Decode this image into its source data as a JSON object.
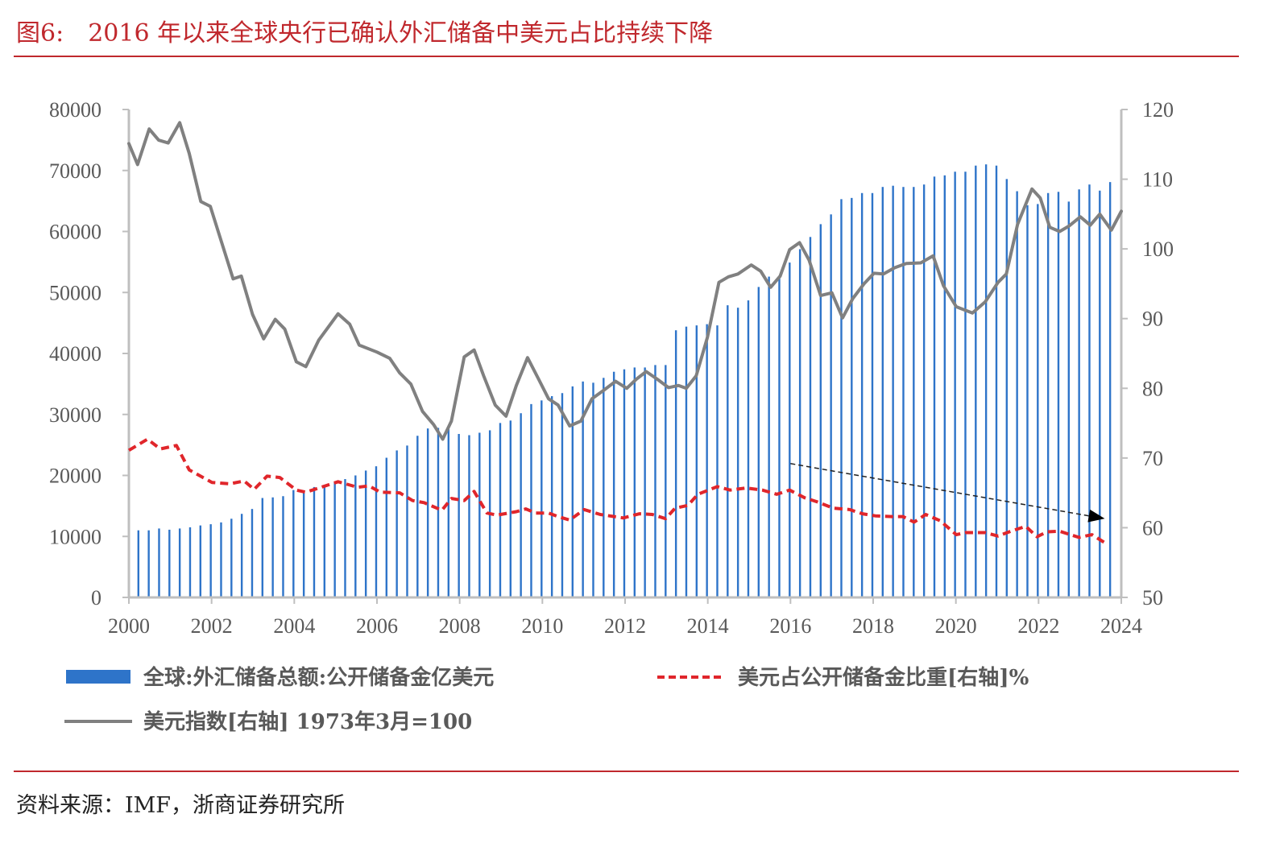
{
  "title": "图6:　2016 年以来全球央行已确认外汇储备中美元占比持续下降",
  "source": "资料来源：IMF，浙商证券研究所",
  "colors": {
    "title": "#c0282d",
    "bars": "#2e74c9",
    "dxy": "#808080",
    "usd_share": "#e0262b",
    "arrow": "#222222"
  },
  "chart_data": {
    "type": "bar+line",
    "title": "2016 年以来全球央行已确认外汇储备中美元占比持续下降",
    "x_ticks": [
      "2000",
      "2002",
      "2004",
      "2006",
      "2008",
      "2010",
      "2012",
      "2014",
      "2016",
      "2018",
      "2020",
      "2022",
      "2024"
    ],
    "xlim": [
      2000,
      2024
    ],
    "y_left": {
      "ticks": [
        "0",
        "10000",
        "20000",
        "30000",
        "40000",
        "50000",
        "60000",
        "70000",
        "80000"
      ],
      "ylim": [
        0,
        80000
      ]
    },
    "y_right": {
      "ticks": [
        "50",
        "60",
        "70",
        "80",
        "90",
        "100",
        "110",
        "120"
      ],
      "ylim": [
        50,
        120
      ]
    },
    "grid": false,
    "legend_position": "bottom",
    "series": [
      {
        "name": "全球:外汇储备总额:公开储备金 亿美元",
        "legend": "全球:外汇储备总额:公开储备金亿美元",
        "type": "bar",
        "axis": "left",
        "frequency": "quarterly",
        "start": "2000Q1",
        "values": [
          11000,
          11000,
          11300,
          11100,
          11300,
          11500,
          11800,
          12000,
          12300,
          12900,
          13700,
          14500,
          16300,
          16400,
          16600,
          17600,
          17300,
          18100,
          18300,
          19000,
          19400,
          20000,
          20800,
          21500,
          22900,
          24100,
          24900,
          26500,
          27700,
          27800,
          28000,
          26800,
          26600,
          27000,
          27400,
          28600,
          29000,
          30200,
          31700,
          32300,
          33000,
          33500,
          34600,
          35400,
          35200,
          36000,
          37000,
          37400,
          37700,
          37700,
          38100,
          38100,
          43800,
          44400,
          44600,
          44800,
          44600,
          47900,
          47500,
          48700,
          50900,
          52600,
          52400,
          54900,
          57100,
          59100,
          61200,
          62800,
          65300,
          65500,
          66300,
          66300,
          67300,
          67500,
          67300,
          67300,
          67700,
          69000,
          69200,
          69800,
          69800,
          70800,
          71000,
          70800,
          68600,
          66600,
          64300,
          64500,
          66300,
          66500,
          64900,
          66900,
          67700,
          66700,
          68100
        ]
      },
      {
        "name": "美元占公开储备金比重[右轴]%",
        "legend": "美元占公开储备金比重[右轴]%",
        "type": "line",
        "style": "dashed",
        "axis": "right",
        "points": [
          [
            2000.0,
            71.1
          ],
          [
            2000.45,
            72.7
          ],
          [
            2000.76,
            71.3
          ],
          [
            2001.15,
            71.8
          ],
          [
            2001.46,
            68.3
          ],
          [
            2002.01,
            66.5
          ],
          [
            2002.44,
            66.3
          ],
          [
            2002.79,
            66.7
          ],
          [
            2003.03,
            65.5
          ],
          [
            2003.34,
            67.4
          ],
          [
            2003.65,
            67.2
          ],
          [
            2004.05,
            65.4
          ],
          [
            2004.28,
            65.1
          ],
          [
            2004.75,
            66.0
          ],
          [
            2005.06,
            66.6
          ],
          [
            2005.53,
            65.8
          ],
          [
            2005.81,
            66.0
          ],
          [
            2006.08,
            65.1
          ],
          [
            2006.55,
            65.0
          ],
          [
            2006.86,
            63.9
          ],
          [
            2007.14,
            63.6
          ],
          [
            2007.57,
            62.5
          ],
          [
            2007.8,
            64.2
          ],
          [
            2008.11,
            63.9
          ],
          [
            2008.35,
            65.2
          ],
          [
            2008.66,
            62.1
          ],
          [
            2008.9,
            61.8
          ],
          [
            2009.37,
            62.3
          ],
          [
            2009.6,
            62.7
          ],
          [
            2009.84,
            62.1
          ],
          [
            2010.15,
            62.1
          ],
          [
            2010.38,
            61.6
          ],
          [
            2010.66,
            61.1
          ],
          [
            2011.01,
            62.6
          ],
          [
            2011.4,
            61.9
          ],
          [
            2011.96,
            61.4
          ],
          [
            2012.35,
            62.0
          ],
          [
            2012.66,
            61.9
          ],
          [
            2012.98,
            61.3
          ],
          [
            2013.21,
            62.8
          ],
          [
            2013.52,
            63.2
          ],
          [
            2013.76,
            64.8
          ],
          [
            2014.23,
            65.9
          ],
          [
            2014.54,
            65.4
          ],
          [
            2014.93,
            65.7
          ],
          [
            2015.32,
            65.4
          ],
          [
            2015.67,
            64.8
          ],
          [
            2015.98,
            65.4
          ],
          [
            2016.34,
            64.3
          ],
          [
            2016.65,
            63.7
          ],
          [
            2017.04,
            62.8
          ],
          [
            2017.43,
            62.6
          ],
          [
            2017.74,
            62.0
          ],
          [
            2018.05,
            61.7
          ],
          [
            2018.45,
            61.6
          ],
          [
            2018.72,
            61.6
          ],
          [
            2018.99,
            60.8
          ],
          [
            2019.27,
            61.9
          ],
          [
            2019.62,
            61.0
          ],
          [
            2020.01,
            59.0
          ],
          [
            2020.24,
            59.3
          ],
          [
            2020.71,
            59.3
          ],
          [
            2021.02,
            58.8
          ],
          [
            2021.33,
            59.5
          ],
          [
            2021.69,
            60.2
          ],
          [
            2021.96,
            58.7
          ],
          [
            2022.2,
            59.4
          ],
          [
            2022.51,
            59.5
          ],
          [
            2022.98,
            58.6
          ],
          [
            2023.29,
            59.0
          ],
          [
            2023.64,
            57.7
          ]
        ]
      },
      {
        "name": "美元指数[右轴] 1973年3月=100",
        "legend": "美元指数[右轴] 1973年3月=100",
        "type": "line",
        "style": "solid",
        "axis": "right",
        "points": [
          [
            2000.0,
            115.1
          ],
          [
            2000.21,
            112.1
          ],
          [
            2000.49,
            117.2
          ],
          [
            2000.72,
            115.6
          ],
          [
            2000.95,
            115.2
          ],
          [
            2001.23,
            118.1
          ],
          [
            2001.46,
            113.7
          ],
          [
            2001.74,
            106.8
          ],
          [
            2001.97,
            106.1
          ],
          [
            2002.25,
            100.8
          ],
          [
            2002.52,
            95.7
          ],
          [
            2002.72,
            96.1
          ],
          [
            2002.99,
            90.6
          ],
          [
            2003.26,
            87.1
          ],
          [
            2003.54,
            89.9
          ],
          [
            2003.77,
            88.5
          ],
          [
            2004.05,
            83.8
          ],
          [
            2004.28,
            83.1
          ],
          [
            2004.59,
            86.9
          ],
          [
            2005.06,
            90.7
          ],
          [
            2005.34,
            89.2
          ],
          [
            2005.57,
            86.2
          ],
          [
            2006.0,
            85.2
          ],
          [
            2006.31,
            84.3
          ],
          [
            2006.55,
            82.2
          ],
          [
            2006.82,
            80.6
          ],
          [
            2007.1,
            76.7
          ],
          [
            2007.37,
            74.8
          ],
          [
            2007.59,
            72.7
          ],
          [
            2007.8,
            75.3
          ],
          [
            2008.11,
            84.5
          ],
          [
            2008.35,
            85.5
          ],
          [
            2008.58,
            81.8
          ],
          [
            2008.86,
            77.6
          ],
          [
            2009.12,
            76.0
          ],
          [
            2009.37,
            80.4
          ],
          [
            2009.64,
            84.4
          ],
          [
            2009.91,
            81.3
          ],
          [
            2010.15,
            78.5
          ],
          [
            2010.38,
            77.6
          ],
          [
            2010.66,
            74.6
          ],
          [
            2010.93,
            75.3
          ],
          [
            2011.2,
            78.5
          ],
          [
            2011.48,
            79.7
          ],
          [
            2011.77,
            81.0
          ],
          [
            2012.04,
            80.0
          ],
          [
            2012.27,
            81.3
          ],
          [
            2012.51,
            82.4
          ],
          [
            2012.78,
            81.3
          ],
          [
            2013.05,
            80.1
          ],
          [
            2013.29,
            80.4
          ],
          [
            2013.48,
            80.0
          ],
          [
            2013.72,
            81.8
          ],
          [
            2013.99,
            87.3
          ],
          [
            2014.27,
            95.2
          ],
          [
            2014.5,
            96.0
          ],
          [
            2014.73,
            96.4
          ],
          [
            2015.05,
            97.7
          ],
          [
            2015.28,
            96.8
          ],
          [
            2015.52,
            94.5
          ],
          [
            2015.75,
            96.1
          ],
          [
            2015.98,
            99.9
          ],
          [
            2016.22,
            100.9
          ],
          [
            2016.45,
            98.4
          ],
          [
            2016.73,
            93.3
          ],
          [
            2017.0,
            93.7
          ],
          [
            2017.26,
            90.1
          ],
          [
            2017.51,
            92.9
          ],
          [
            2017.78,
            95.0
          ],
          [
            2018.02,
            96.5
          ],
          [
            2018.25,
            96.4
          ],
          [
            2018.52,
            97.3
          ],
          [
            2018.8,
            97.9
          ],
          [
            2019.15,
            98.0
          ],
          [
            2019.45,
            99.0
          ],
          [
            2019.7,
            94.7
          ],
          [
            2020.01,
            91.7
          ],
          [
            2020.4,
            90.8
          ],
          [
            2020.71,
            92.4
          ],
          [
            2021.02,
            95.2
          ],
          [
            2021.22,
            96.4
          ],
          [
            2021.49,
            103.5
          ],
          [
            2021.84,
            108.6
          ],
          [
            2022.04,
            107.3
          ],
          [
            2022.27,
            103.1
          ],
          [
            2022.51,
            102.5
          ],
          [
            2022.74,
            103.3
          ],
          [
            2023.01,
            104.6
          ],
          [
            2023.25,
            103.4
          ],
          [
            2023.48,
            105.0
          ],
          [
            2023.76,
            102.7
          ],
          [
            2024.0,
            105.4
          ]
        ]
      }
    ],
    "annotations": [
      {
        "type": "arrow",
        "style": "dashed",
        "axis": "right",
        "from": [
          2016.0,
          69.2
        ],
        "to": [
          2023.6,
          61.3
        ]
      }
    ]
  }
}
